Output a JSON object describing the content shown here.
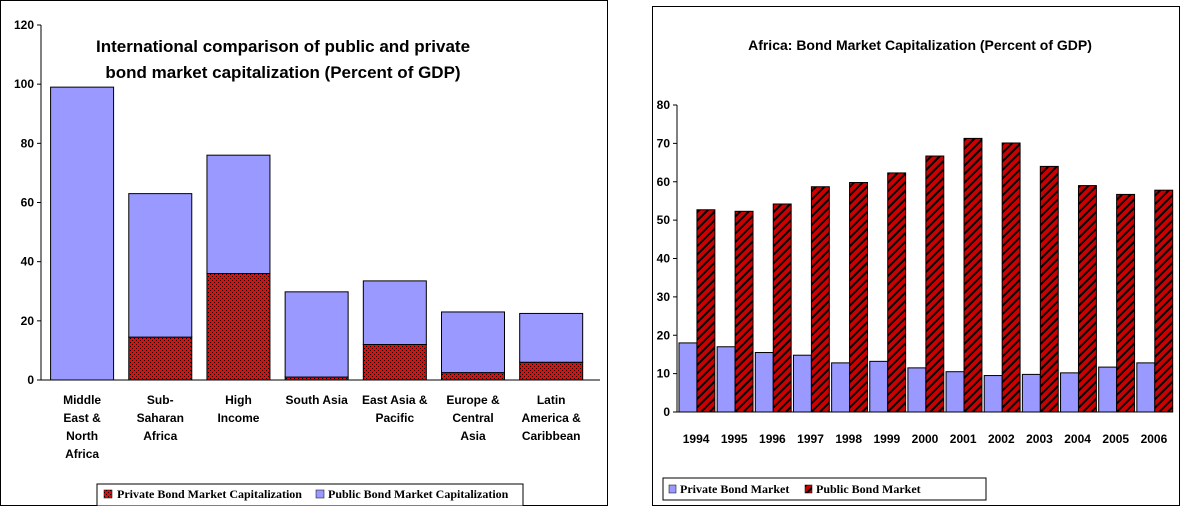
{
  "chart_data": [
    {
      "type": "bar",
      "stacked": true,
      "title_lines": [
        "International comparison of public and private",
        "bond market capitalization  (Percent of GDP)"
      ],
      "categories": [
        [
          "Middle",
          "East &",
          "North",
          "Africa"
        ],
        [
          "Sub-",
          "Saharan",
          "Africa"
        ],
        [
          "High",
          "Income"
        ],
        [
          "South Asia"
        ],
        [
          "East Asia &",
          "Pacific"
        ],
        [
          "Europe &",
          "Central",
          "Asia"
        ],
        [
          "Latin",
          "America &",
          "Caribbean"
        ]
      ],
      "series": [
        {
          "name": "Private Bond Market Capitalization",
          "color": "#ff0000",
          "pattern": "dots",
          "values": [
            0,
            14.5,
            36,
            1,
            12,
            2.5,
            6
          ]
        },
        {
          "name": "Public Bond Market Capitalization",
          "color": "#9999ff",
          "values": [
            99,
            48.5,
            40,
            28.8,
            21.5,
            20.5,
            16.5
          ]
        }
      ],
      "ylim": [
        0,
        120
      ],
      "yticks": [
        0,
        20,
        40,
        60,
        80,
        100,
        120
      ],
      "grid": false,
      "legend_position": "bottom"
    },
    {
      "type": "bar",
      "stacked": false,
      "title": "Africa: Bond Market Capitalization (Percent of GDP)",
      "categories": [
        "1994",
        "1995",
        "1996",
        "1997",
        "1998",
        "1999",
        "2000",
        "2001",
        "2002",
        "2003",
        "2004",
        "2005",
        "2006"
      ],
      "series": [
        {
          "name": "Private Bond Market",
          "color": "#9999ff",
          "values": [
            18,
            17,
            15.5,
            14.8,
            12.8,
            13.2,
            11.5,
            10.5,
            9.5,
            9.8,
            10.2,
            11.7,
            12.8
          ]
        },
        {
          "name": "Public Bond Market",
          "color": "#8b0000",
          "pattern": "diagonal-hatch",
          "values": [
            52.7,
            52.3,
            54.2,
            58.7,
            59.8,
            62.3,
            66.7,
            71.3,
            70.1,
            64,
            59,
            56.7,
            57.8
          ]
        }
      ],
      "ylim": [
        0,
        80
      ],
      "yticks": [
        0,
        10,
        20,
        30,
        40,
        50,
        60,
        70,
        80
      ],
      "grid": false,
      "legend_position": "bottom-left"
    }
  ]
}
